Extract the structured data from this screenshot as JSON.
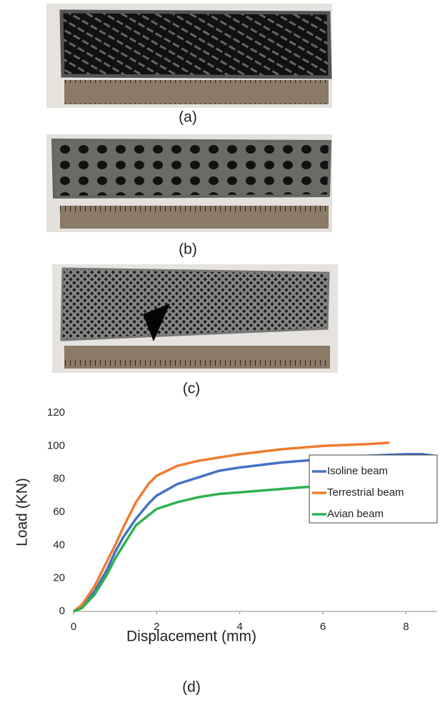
{
  "panels": [
    {
      "label": "(a)"
    },
    {
      "label": "(b)"
    },
    {
      "label": "(c)"
    },
    {
      "label": "(d)"
    }
  ],
  "chart_data": {
    "type": "line",
    "x_label": "Displacement (mm)",
    "y_label": "Load (KN)",
    "xlim": [
      0,
      8.75
    ],
    "xticks": [
      0,
      2,
      4,
      6,
      8
    ],
    "ylim": [
      0,
      120
    ],
    "yticks": [
      0,
      20,
      40,
      60,
      80,
      100,
      120
    ],
    "grid": false,
    "legend": "right",
    "series": [
      {
        "name": "Isoline beam",
        "color": "#4472c4",
        "x": [
          0,
          0.2,
          0.5,
          0.8,
          1.0,
          1.2,
          1.5,
          1.8,
          2.0,
          2.5,
          3,
          3.5,
          4,
          5,
          6,
          7,
          8,
          8.4,
          8.7
        ],
        "values": [
          0,
          3,
          12,
          25,
          36,
          45,
          56,
          65,
          70,
          77,
          81,
          85,
          87,
          90,
          92,
          94,
          95,
          95,
          94
        ]
      },
      {
        "name": "Terrestrial beam",
        "color": "#ed7d31",
        "x": [
          0,
          0.2,
          0.5,
          0.8,
          1.0,
          1.2,
          1.5,
          1.8,
          2.0,
          2.5,
          3,
          3.5,
          4,
          5,
          6,
          7,
          7.6
        ],
        "values": [
          0,
          4,
          15,
          30,
          40,
          51,
          66,
          77,
          82,
          88,
          91,
          93,
          95,
          98,
          100,
          101,
          102
        ]
      },
      {
        "name": "Avian beam",
        "color": "#2fb14f",
        "x": [
          0,
          0.2,
          0.5,
          0.8,
          1.0,
          1.2,
          1.5,
          1.8,
          2.0,
          2.5,
          3,
          3.5,
          4,
          5,
          5.5,
          6,
          6.2
        ],
        "values": [
          0,
          2,
          10,
          22,
          32,
          40,
          52,
          58,
          62,
          66,
          69,
          71,
          72,
          74,
          75,
          76,
          76
        ]
      }
    ]
  }
}
